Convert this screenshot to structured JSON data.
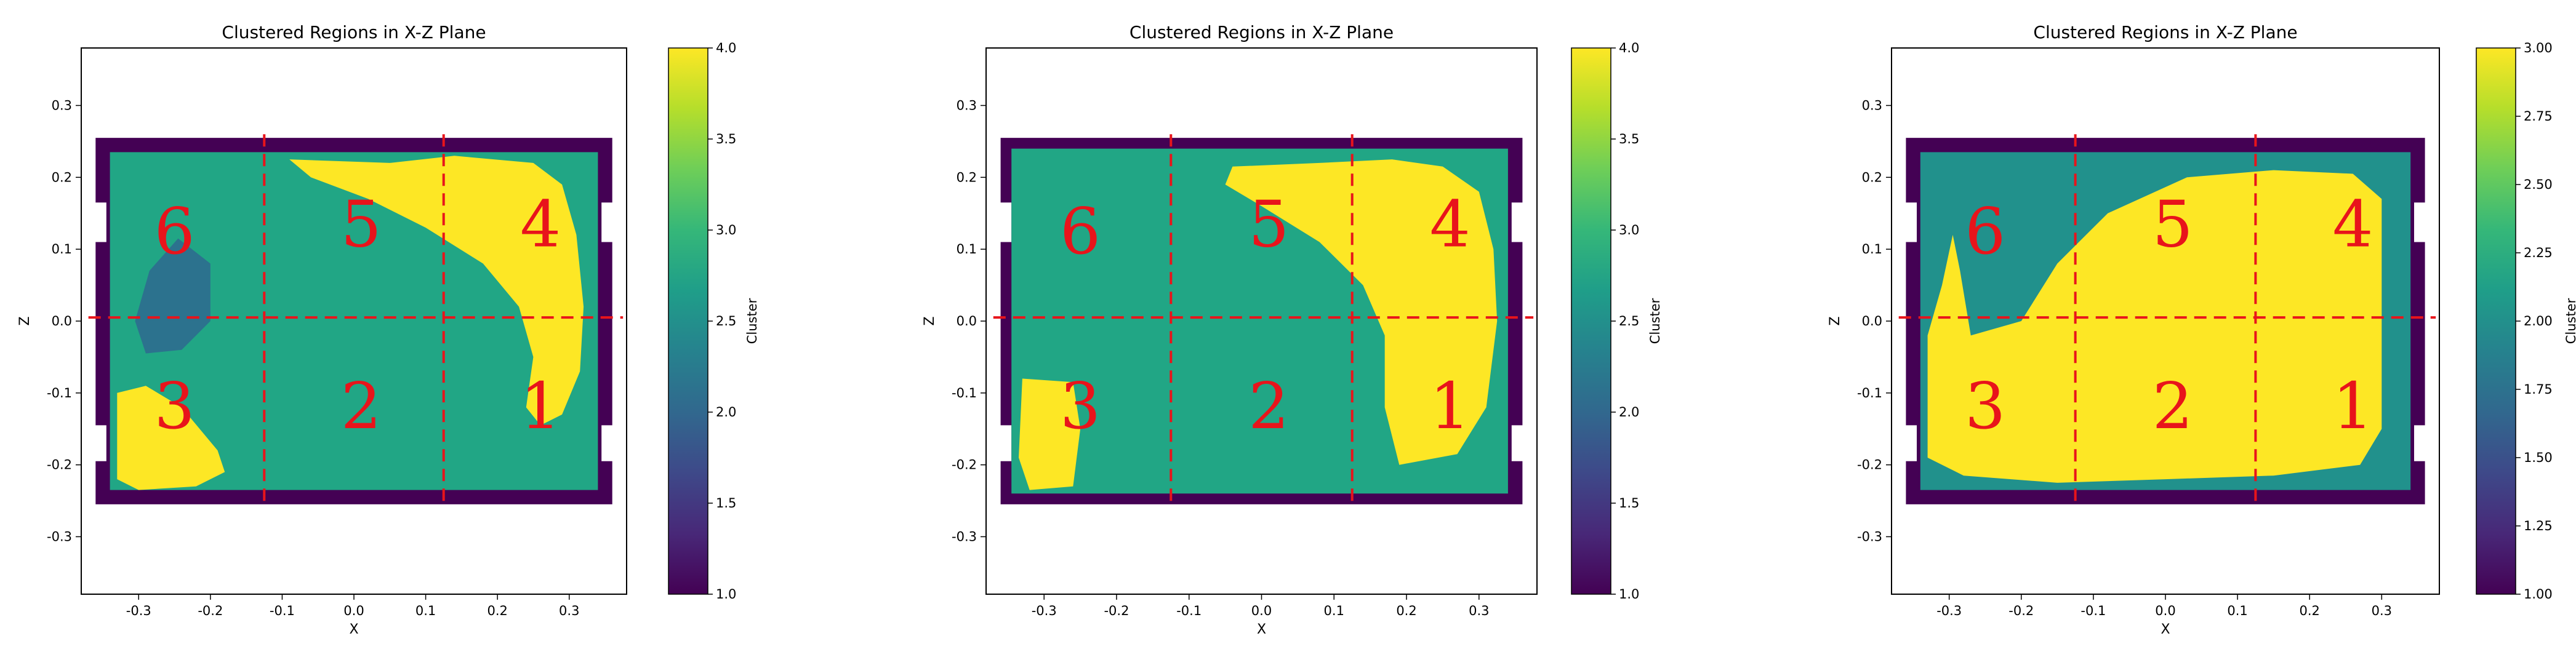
{
  "chart_data": [
    {
      "type": "heatmap",
      "title": "Clustered Regions in X-Z Plane",
      "xlabel": "X",
      "ylabel": "Z",
      "colorbar_label": "Cluster",
      "xlim": [
        -0.38,
        0.38
      ],
      "ylim": [
        -0.38,
        0.38
      ],
      "x_ticks": [
        "-0.3",
        "-0.2",
        "-0.1",
        "0.0",
        "0.1",
        "0.2",
        "0.3"
      ],
      "y_ticks": [
        "-0.3",
        "-0.2",
        "-0.1",
        "0.0",
        "0.1",
        "0.2",
        "0.3"
      ],
      "colorbar_range": [
        1.0,
        4.0
      ],
      "colorbar_ticks": [
        "1.0",
        "1.5",
        "2.0",
        "2.5",
        "3.0",
        "3.5",
        "4.0"
      ],
      "colormap": "viridis",
      "region_labels": [
        "6",
        "5",
        "4",
        "3",
        "2",
        "1"
      ],
      "divider_x": [
        -0.125,
        0.125
      ],
      "divider_z": [
        0.005
      ],
      "clusters": [
        {
          "value": 1,
          "region": "outer border",
          "color": "#440154"
        },
        {
          "value": 2,
          "region": "blob in region 6",
          "color": "#2c728e"
        },
        {
          "value": 3,
          "region": "background fill",
          "color": "#21a685"
        },
        {
          "value": 4,
          "region": "crescent regions 5-4-1 and patch in region 3",
          "color": "#fde725"
        }
      ]
    },
    {
      "type": "heatmap",
      "title": "Clustered Regions in X-Z Plane",
      "xlabel": "X",
      "ylabel": "Z",
      "colorbar_label": "Cluster",
      "xlim": [
        -0.38,
        0.38
      ],
      "ylim": [
        -0.38,
        0.38
      ],
      "x_ticks": [
        "-0.3",
        "-0.2",
        "-0.1",
        "0.0",
        "0.1",
        "0.2",
        "0.3"
      ],
      "y_ticks": [
        "-0.3",
        "-0.2",
        "-0.1",
        "0.0",
        "0.1",
        "0.2",
        "0.3"
      ],
      "colorbar_range": [
        1.0,
        4.0
      ],
      "colorbar_ticks": [
        "1.0",
        "1.5",
        "2.0",
        "2.5",
        "3.0",
        "3.5",
        "4.0"
      ],
      "colormap": "viridis",
      "region_labels": [
        "6",
        "5",
        "4",
        "3",
        "2",
        "1"
      ],
      "divider_x": [
        -0.125,
        0.125
      ],
      "divider_z": [
        0.005
      ],
      "clusters": [
        {
          "value": 1,
          "region": "outer border",
          "color": "#440154"
        },
        {
          "value": 3,
          "region": "background fill",
          "color": "#21a685"
        },
        {
          "value": 4,
          "region": "crescent regions 5-4-1 and patch in region 3",
          "color": "#fde725"
        }
      ]
    },
    {
      "type": "heatmap",
      "title": "Clustered Regions in X-Z Plane",
      "xlabel": "X",
      "ylabel": "Z",
      "colorbar_label": "Cluster",
      "xlim": [
        -0.38,
        0.38
      ],
      "ylim": [
        -0.38,
        0.38
      ],
      "x_ticks": [
        "-0.3",
        "-0.2",
        "-0.1",
        "0.0",
        "0.1",
        "0.2",
        "0.3"
      ],
      "y_ticks": [
        "-0.3",
        "-0.2",
        "-0.1",
        "0.0",
        "0.1",
        "0.2",
        "0.3"
      ],
      "colorbar_range": [
        1.0,
        3.0
      ],
      "colorbar_ticks": [
        "1.00",
        "1.25",
        "1.50",
        "1.75",
        "2.00",
        "2.25",
        "2.50",
        "2.75",
        "3.00"
      ],
      "colormap": "viridis",
      "region_labels": [
        "6",
        "5",
        "4",
        "3",
        "2",
        "1"
      ],
      "divider_x": [
        -0.125,
        0.125
      ],
      "divider_z": [
        0.005
      ],
      "clusters": [
        {
          "value": 1,
          "region": "outer border",
          "color": "#440154"
        },
        {
          "value": 2,
          "region": "background / region 6 band",
          "color": "#21918c"
        },
        {
          "value": 3,
          "region": "large central region",
          "color": "#fde725"
        }
      ]
    }
  ]
}
